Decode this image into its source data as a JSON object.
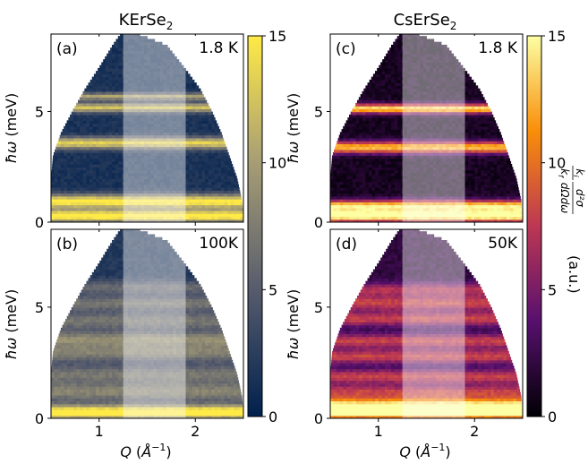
{
  "figure": {
    "panel_titles": {
      "left": "KErSe",
      "left_sub": "2",
      "right": "CsErSe",
      "right_sub": "2"
    },
    "xlabel": {
      "q": "Q",
      "unit_left": "(",
      "ring": "°",
      "unit_a": "Å",
      "unit_exp": "−1",
      "unit_right": ")"
    },
    "ylabel": {
      "hbar_omega": "ħω",
      "unit": "(meV)"
    },
    "colorbar_left": {
      "ticks": [
        "0",
        "5",
        "10",
        "15"
      ],
      "colors": [
        "#00204d",
        "#575c6d",
        "#a69d75",
        "#ffea46"
      ]
    },
    "colorbar_right": {
      "ticks": [
        "0",
        "5",
        "10",
        "15"
      ],
      "colors": [
        "#000004",
        "#57106e",
        "#bc3754",
        "#f98e09",
        "#fcffa4"
      ],
      "label_frac_num": "k",
      "label_frac_num_sub": "i",
      "label_d2sigma": "d²σ",
      "label_frac_den": "k",
      "label_frac_den_sub": "f",
      "label_dOmega": "dΩdω",
      "label_units": "(a.u.)"
    },
    "x_ticks": [
      "1",
      "2"
    ],
    "y_ticks": [
      "0",
      "5"
    ]
  },
  "chart_data": [
    {
      "type": "heatmap",
      "panel": "(a)",
      "compound": "KErSe2",
      "temperature_label": "1.8 K",
      "xlabel": "Q (Å^-1)",
      "ylabel": "ħω (meV)",
      "xlim": [
        0.5,
        2.5
      ],
      "ylim": [
        0,
        8.5
      ],
      "clim": [
        0,
        15
      ],
      "colormap": "cividis",
      "coverage_q_max": [
        [
          0.0,
          2.5
        ],
        [
          1.0,
          2.48
        ],
        [
          2.0,
          2.43
        ],
        [
          3.0,
          2.35
        ],
        [
          4.0,
          2.27
        ],
        [
          5.0,
          2.17
        ],
        [
          6.0,
          2.05
        ],
        [
          7.0,
          1.88
        ],
        [
          8.0,
          1.7
        ],
        [
          8.6,
          1.35
        ],
        [
          8.5,
          1.0
        ]
      ],
      "coverage_q_min": [
        [
          0.0,
          0.5
        ],
        [
          2.0,
          0.5
        ],
        [
          3.0,
          0.52
        ],
        [
          4.0,
          0.6
        ],
        [
          5.0,
          0.72
        ],
        [
          6.0,
          0.85
        ],
        [
          7.0,
          1.0
        ],
        [
          8.0,
          1.14
        ],
        [
          8.5,
          1.22
        ]
      ],
      "background_intensity": 1.5,
      "bands": [
        {
          "energy": 0.3,
          "intensity": 15,
          "width": 0.25
        },
        {
          "energy": 0.95,
          "intensity": 14,
          "width": 0.3
        },
        {
          "energy": 3.6,
          "intensity": 12,
          "width": 0.25
        },
        {
          "energy": 5.2,
          "intensity": 11,
          "width": 0.2
        },
        {
          "energy": 5.7,
          "intensity": 9,
          "width": 0.15
        }
      ],
      "highlight_q": [
        1.25,
        1.9
      ]
    },
    {
      "type": "heatmap",
      "panel": "(b)",
      "compound": "KErSe2",
      "temperature_label": "100K",
      "xlabel": "Q (Å^-1)",
      "ylabel": "ħω (meV)",
      "xlim": [
        0.5,
        2.5
      ],
      "ylim": [
        0,
        8.5
      ],
      "clim": [
        0,
        15
      ],
      "colormap": "cividis",
      "coverage_q_max": [
        [
          0.0,
          2.5
        ],
        [
          1.0,
          2.48
        ],
        [
          2.0,
          2.43
        ],
        [
          3.0,
          2.35
        ],
        [
          4.0,
          2.27
        ],
        [
          5.0,
          2.17
        ],
        [
          6.0,
          2.05
        ],
        [
          7.0,
          1.88
        ],
        [
          8.0,
          1.7
        ],
        [
          8.6,
          1.35
        ],
        [
          8.5,
          1.0
        ]
      ],
      "coverage_q_min": [
        [
          0.0,
          0.5
        ],
        [
          2.0,
          0.5
        ],
        [
          3.0,
          0.52
        ],
        [
          4.0,
          0.6
        ],
        [
          5.0,
          0.72
        ],
        [
          6.0,
          0.85
        ],
        [
          7.0,
          1.0
        ],
        [
          8.0,
          1.14
        ],
        [
          8.5,
          1.22
        ]
      ],
      "background_intensity": 2.0,
      "bands": [
        {
          "energy": 0.3,
          "intensity": 15,
          "width": 0.3
        },
        {
          "energy": 1.2,
          "intensity": 6,
          "width": 0.4
        },
        {
          "energy": 2.0,
          "intensity": 5,
          "width": 0.4
        },
        {
          "energy": 3.0,
          "intensity": 6,
          "width": 0.4
        },
        {
          "energy": 3.6,
          "intensity": 6,
          "width": 0.3
        },
        {
          "energy": 4.4,
          "intensity": 5,
          "width": 0.4
        },
        {
          "energy": 5.2,
          "intensity": 5,
          "width": 0.3
        },
        {
          "energy": 5.9,
          "intensity": 4,
          "width": 0.3
        }
      ],
      "highlight_q": [
        1.25,
        1.9
      ]
    },
    {
      "type": "heatmap",
      "panel": "(c)",
      "compound": "CsErSe2",
      "temperature_label": "1.8 K",
      "xlabel": "Q (Å^-1)",
      "ylabel": "ħω (meV)",
      "xlim": [
        0.5,
        2.5
      ],
      "ylim": [
        0,
        8.5
      ],
      "clim": [
        0,
        15
      ],
      "colormap": "inferno",
      "coverage_q_max": [
        [
          0.0,
          2.5
        ],
        [
          1.0,
          2.48
        ],
        [
          2.0,
          2.43
        ],
        [
          3.0,
          2.35
        ],
        [
          4.0,
          2.27
        ],
        [
          5.0,
          2.17
        ],
        [
          6.0,
          2.05
        ],
        [
          7.0,
          1.88
        ],
        [
          8.0,
          1.7
        ],
        [
          8.6,
          1.35
        ],
        [
          8.5,
          1.0
        ]
      ],
      "coverage_q_min": [
        [
          0.0,
          0.5
        ],
        [
          2.0,
          0.5
        ],
        [
          3.0,
          0.52
        ],
        [
          4.0,
          0.6
        ],
        [
          5.0,
          0.72
        ],
        [
          6.0,
          0.85
        ],
        [
          7.0,
          1.0
        ],
        [
          8.0,
          1.14
        ],
        [
          8.5,
          1.22
        ]
      ],
      "background_intensity": 1.0,
      "bands": [
        {
          "energy": 0.3,
          "intensity": 15,
          "width": 0.25
        },
        {
          "energy": 0.75,
          "intensity": 13,
          "width": 0.25
        },
        {
          "energy": 3.4,
          "intensity": 12,
          "width": 0.25
        },
        {
          "energy": 5.15,
          "intensity": 13,
          "width": 0.2
        }
      ],
      "highlight_q": [
        1.25,
        1.9
      ]
    },
    {
      "type": "heatmap",
      "panel": "(d)",
      "compound": "CsErSe2",
      "temperature_label": "50K",
      "xlabel": "Q (Å^-1)",
      "ylabel": "ħω (meV)",
      "xlim": [
        0.5,
        2.5
      ],
      "ylim": [
        0,
        8.5
      ],
      "clim": [
        0,
        15
      ],
      "colormap": "inferno",
      "coverage_q_max": [
        [
          0.0,
          2.5
        ],
        [
          1.0,
          2.48
        ],
        [
          2.0,
          2.43
        ],
        [
          3.0,
          2.35
        ],
        [
          4.0,
          2.27
        ],
        [
          5.0,
          2.17
        ],
        [
          6.0,
          2.05
        ],
        [
          7.0,
          1.88
        ],
        [
          8.0,
          1.7
        ],
        [
          8.6,
          1.35
        ],
        [
          8.5,
          1.0
        ]
      ],
      "coverage_q_min": [
        [
          0.0,
          0.5
        ],
        [
          2.0,
          0.5
        ],
        [
          3.0,
          0.52
        ],
        [
          4.0,
          0.6
        ],
        [
          5.0,
          0.72
        ],
        [
          6.0,
          0.85
        ],
        [
          7.0,
          1.0
        ],
        [
          8.0,
          1.14
        ],
        [
          8.5,
          1.22
        ]
      ],
      "background_intensity": 2.0,
      "bands": [
        {
          "energy": 0.3,
          "intensity": 15,
          "width": 0.3
        },
        {
          "energy": 0.7,
          "intensity": 9,
          "width": 0.25
        },
        {
          "energy": 1.2,
          "intensity": 6,
          "width": 0.3
        },
        {
          "energy": 1.9,
          "intensity": 6,
          "width": 0.3
        },
        {
          "energy": 2.8,
          "intensity": 6,
          "width": 0.3
        },
        {
          "energy": 3.5,
          "intensity": 6,
          "width": 0.3
        },
        {
          "energy": 4.5,
          "intensity": 6,
          "width": 0.3
        },
        {
          "energy": 5.2,
          "intensity": 6,
          "width": 0.3
        },
        {
          "energy": 5.8,
          "intensity": 5,
          "width": 0.3
        }
      ],
      "highlight_q": [
        1.25,
        1.9
      ]
    }
  ]
}
